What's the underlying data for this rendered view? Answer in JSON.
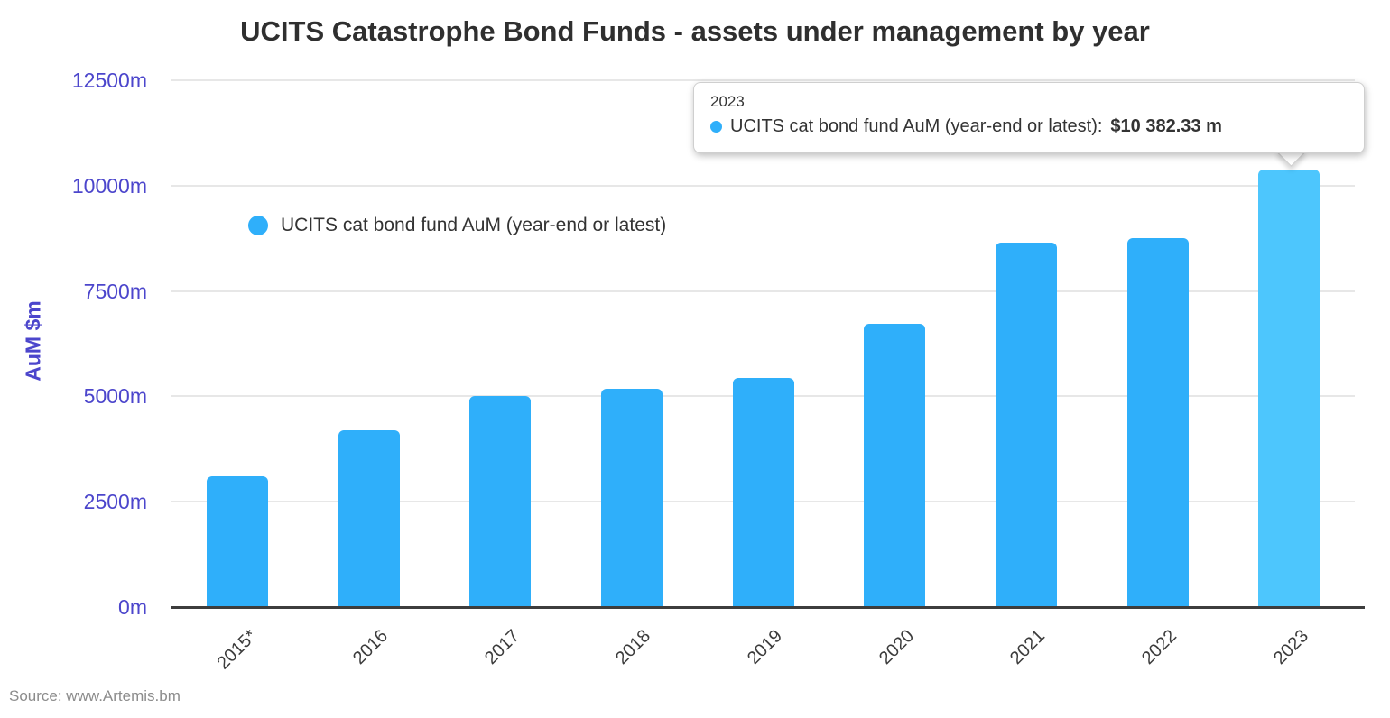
{
  "title": "UCITS Catastrophe Bond Funds - assets under management by year",
  "source": "Source: www.Artemis.bm",
  "legend": {
    "label": "UCITS cat bond fund AuM (year-end or latest)"
  },
  "tooltip": {
    "title": "2023",
    "label": "UCITS cat bond fund AuM (year-end or latest):",
    "value": "$10 382.33 m"
  },
  "chart_data": {
    "type": "bar",
    "title": "UCITS Catastrophe Bond Funds - assets under management by year",
    "categories": [
      "2015*",
      "2016",
      "2017",
      "2018",
      "2019",
      "2020",
      "2021",
      "2022",
      "2023"
    ],
    "series": [
      {
        "name": "UCITS cat bond fund AuM (year-end or latest)",
        "values": [
          3100,
          4190,
          5000,
          5180,
          5445,
          6720,
          8655,
          8750,
          10382.33
        ]
      }
    ],
    "xlabel": "",
    "ylabel": "AuM $m",
    "ylim": [
      0,
      12500
    ],
    "yticks": [
      "0m",
      "2500m",
      "5000m",
      "7500m",
      "10000m",
      "12500m"
    ],
    "grid": true,
    "legend_position": "top-left-inside",
    "highlighted_index": 8,
    "highlighted_category": "2023",
    "colors": {
      "bar": "#2faffa",
      "bar_highlighted": "#4dc6fd",
      "axis_text": "#4c46cc",
      "grid": "#e7e7e7",
      "baseline": "#3d3d3d",
      "title_text": "#2f2f2f"
    }
  }
}
